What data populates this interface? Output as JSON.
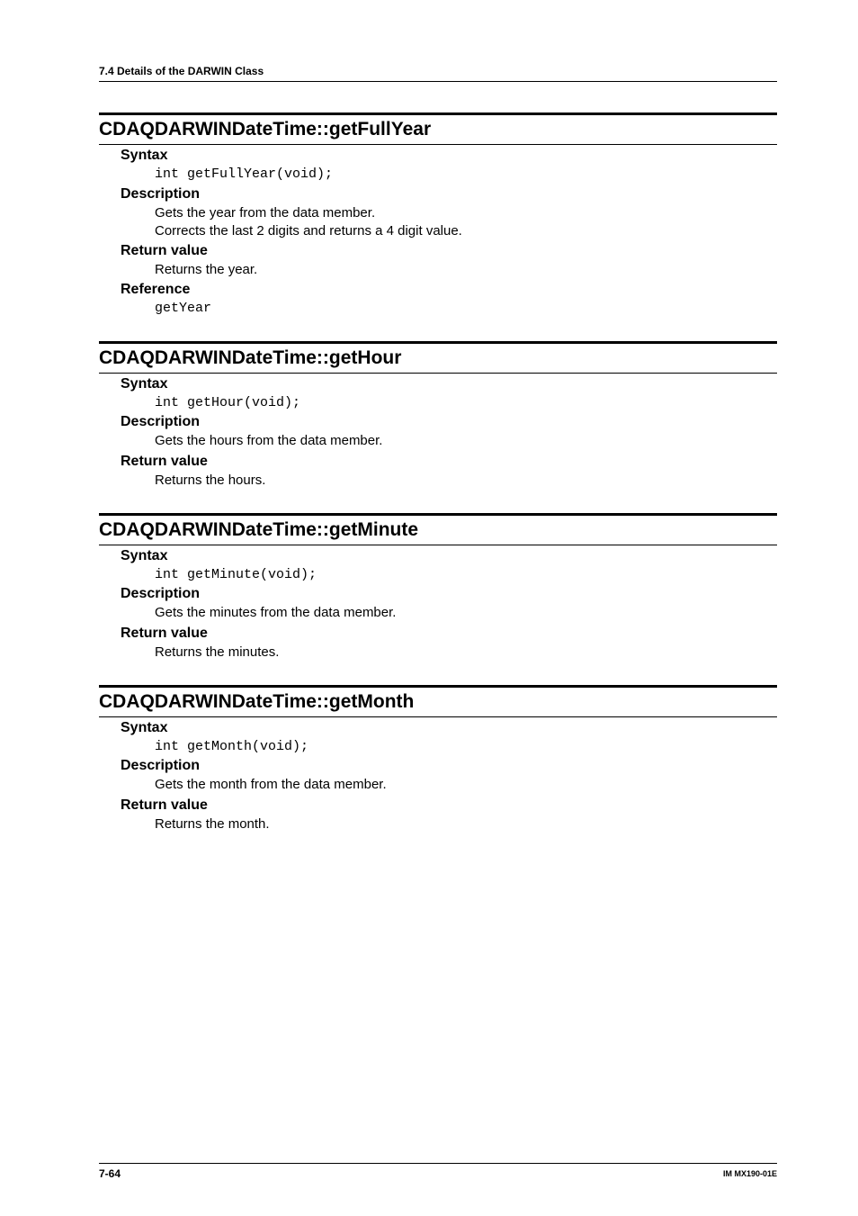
{
  "header": {
    "section": "7.4  Details of the DARWIN Class"
  },
  "methods": [
    {
      "title": "CDAQDARWINDateTime::getFullYear",
      "syntax_label": "Syntax",
      "syntax_code": "int getFullYear(void);",
      "description_label": "Description",
      "description_lines": [
        "Gets the year from the data member.",
        "Corrects the last 2 digits and returns a 4 digit value."
      ],
      "return_label": "Return value",
      "return_text": "Returns the year.",
      "reference_label": "Reference",
      "reference_code": "getYear"
    },
    {
      "title": "CDAQDARWINDateTime::getHour",
      "syntax_label": "Syntax",
      "syntax_code": "int getHour(void);",
      "description_label": "Description",
      "description_lines": [
        "Gets the hours from the data member."
      ],
      "return_label": "Return value",
      "return_text": "Returns the hours."
    },
    {
      "title": "CDAQDARWINDateTime::getMinute",
      "syntax_label": "Syntax",
      "syntax_code": "int getMinute(void);",
      "description_label": "Description",
      "description_lines": [
        "Gets the minutes from the data member."
      ],
      "return_label": "Return value",
      "return_text": "Returns the minutes."
    },
    {
      "title": "CDAQDARWINDateTime::getMonth",
      "syntax_label": "Syntax",
      "syntax_code": "int getMonth(void);",
      "description_label": "Description",
      "description_lines": [
        "Gets the month from the data member."
      ],
      "return_label": "Return value",
      "return_text": "Returns the month."
    }
  ],
  "footer": {
    "page": "7-64",
    "doc": "IM MX190-01E"
  }
}
